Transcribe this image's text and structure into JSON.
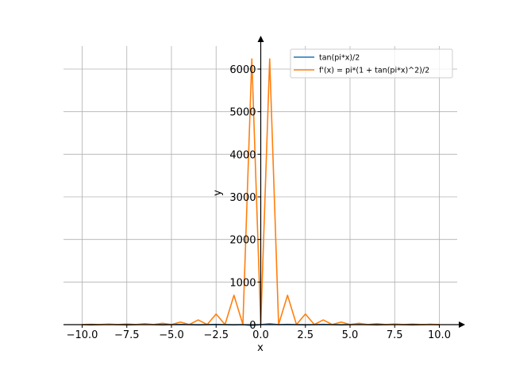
{
  "chart_data": {
    "type": "line",
    "xlabel": "x",
    "ylabel": "y",
    "xlim": [
      -10.5,
      10.5
    ],
    "ylim": [
      0,
      6500
    ],
    "grid": true,
    "legend_position": "top-right",
    "x_ticks": [
      -10.0,
      -7.5,
      -5.0,
      -2.5,
      0.0,
      2.5,
      5.0,
      7.5,
      10.0
    ],
    "x_tick_labels": [
      "−10.0",
      "−7.5",
      "−5.0",
      "−2.5",
      "0.0",
      "2.5",
      "5.0",
      "7.5",
      "10.0"
    ],
    "y_ticks": [
      0,
      1000,
      2000,
      3000,
      4000,
      5000,
      6000
    ],
    "y_tick_labels": [
      "0",
      "1000",
      "2000",
      "3000",
      "4000",
      "5000",
      "6000"
    ],
    "series": [
      {
        "name": "tan(pi*x)/2",
        "color": "#1f77b4",
        "x": [
          -10,
          -9.5,
          -9,
          -8.5,
          -8,
          -7.5,
          -7,
          -6.5,
          -6,
          -5.5,
          -5,
          -4.5,
          -4,
          -3.5,
          -3,
          -2.5,
          -2,
          -1.5,
          -1,
          -0.5,
          0,
          0.5,
          1,
          1.5,
          2,
          2.5,
          3,
          3.5,
          4,
          4.5,
          5,
          5.5,
          6,
          6.5,
          7,
          7.5,
          8,
          8.5,
          9,
          9.5,
          10
        ],
        "y": [
          0,
          -5,
          0,
          5,
          0,
          -5,
          0,
          5,
          0,
          -5,
          0,
          5,
          0,
          -5,
          0,
          5,
          0,
          -5,
          0,
          -20,
          0,
          20,
          0,
          5,
          0,
          -5,
          0,
          5,
          0,
          -5,
          0,
          5,
          0,
          -5,
          0,
          5,
          0,
          -5,
          0,
          5,
          0
        ]
      },
      {
        "name": "f'(x) = pi*(1 + tan(pi*x)^2)/2",
        "color": "#ff7f0e",
        "x": [
          -10,
          -9.5,
          -9,
          -8.5,
          -8,
          -7.5,
          -7,
          -6.5,
          -6,
          -5.5,
          -5,
          -4.5,
          -4,
          -3.5,
          -3,
          -2.5,
          -2,
          -1.5,
          -1,
          -0.5,
          0,
          0.5,
          1,
          1.5,
          2,
          2.5,
          3,
          3.5,
          4,
          4.5,
          5,
          5.5,
          6,
          6.5,
          7,
          7.5,
          8,
          8.5,
          9,
          9.5,
          10
        ],
        "y": [
          2,
          8,
          2,
          12,
          2,
          15,
          2,
          22,
          2,
          32,
          2,
          60,
          2,
          110,
          2,
          250,
          2,
          690,
          2,
          6240,
          2,
          6240,
          2,
          690,
          2,
          250,
          2,
          110,
          2,
          60,
          2,
          32,
          2,
          22,
          2,
          15,
          2,
          12,
          2,
          8,
          2
        ]
      }
    ]
  }
}
